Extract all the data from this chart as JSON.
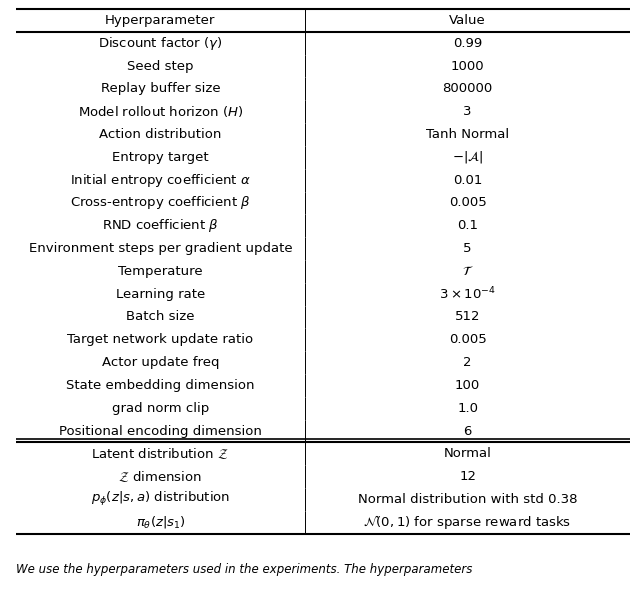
{
  "title_row": [
    "Hyperparameter",
    "Value"
  ],
  "main_rows": [
    [
      "Discount factor ($\\gamma$)",
      "0.99"
    ],
    [
      "Seed step",
      "1000"
    ],
    [
      "Replay buffer size",
      "800000"
    ],
    [
      "Model rollout horizon ($H$)",
      "3"
    ],
    [
      "Action distribution",
      "Tanh Normal"
    ],
    [
      "Entropy target",
      "$-|\\mathcal{A}|$"
    ],
    [
      "Initial entropy coefficient $\\alpha$",
      "0.01"
    ],
    [
      "Cross-entropy coefficient $\\beta$",
      "0.005"
    ],
    [
      "RND coefficient $\\beta$",
      "0.1"
    ],
    [
      "Environment steps per gradient update",
      "5"
    ],
    [
      "Temperature",
      "$\\mathcal{T}$"
    ],
    [
      "Learning rate",
      "$3 \\times 10^{-4}$"
    ],
    [
      "Batch size",
      "512"
    ],
    [
      "Target network update ratio",
      "0.005"
    ],
    [
      "Actor update freq",
      "2"
    ],
    [
      "State embedding dimension",
      "100"
    ],
    [
      "grad norm clip",
      "1.0"
    ],
    [
      "Positional encoding dimension",
      "6"
    ]
  ],
  "bottom_rows": [
    [
      "Latent distribution $\\mathcal{Z}$",
      "Normal"
    ],
    [
      "$\\mathcal{Z}$ dimension",
      "12"
    ],
    [
      "$p_{\\phi}(z|s, a)$ distribution",
      "Normal distribution with std 0.38"
    ],
    [
      "$\\pi_{\\theta}(z|s_1)$",
      "$\\mathcal{N}(0, 1)$ for sparse reward tasks"
    ]
  ],
  "footnote": "We use the hyperparameters used in the experiments. The hyperparameters",
  "col_split": 0.47,
  "font_size": 9.5,
  "footnote_font_size": 8.5,
  "thick_lw": 1.5,
  "thin_lw": 0.7,
  "fig_width": 6.4,
  "fig_height": 6.03,
  "dpi": 100
}
